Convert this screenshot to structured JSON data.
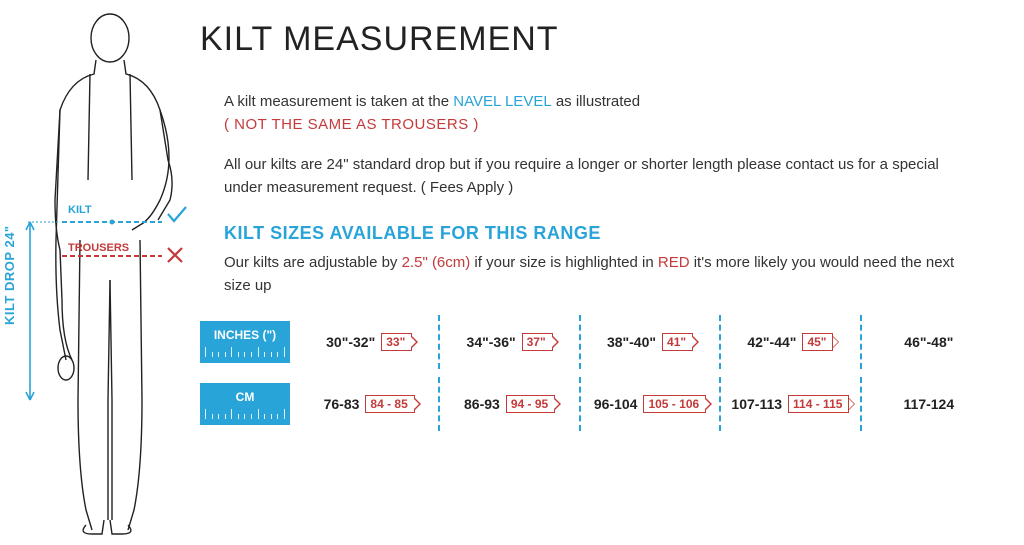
{
  "title": "KILT MEASUREMENT",
  "intro": {
    "line1_pre": "A kilt measurement is taken at the ",
    "line1_highlight": "NAVEL LEVEL",
    "line1_post": " as illustrated",
    "line2": "( NOT THE SAME AS TROUSERS )",
    "para2": "All our kilts are 24\" standard drop but if you require a longer or shorter length please contact us for a special under measurement request. ( Fees Apply )"
  },
  "sizes_heading": "KILT SIZES AVAILABLE FOR THIS RANGE",
  "sizes_sub": {
    "pre": "Our kilts are adjustable by ",
    "adj": "2.5\" (6cm)",
    "mid": " if your size is highlighted in ",
    "red_word": "RED",
    "post": " it's more likely you would need the next size up"
  },
  "units": {
    "inches": "INCHES (\")",
    "cm": "CM"
  },
  "inch_rows": [
    {
      "base": "30\"-32\"",
      "over": "33\""
    },
    {
      "base": "34\"-36\"",
      "over": "37\""
    },
    {
      "base": "38\"-40\"",
      "over": "41\""
    },
    {
      "base": "42\"-44\"",
      "over": "45\""
    },
    {
      "base": "46\"-48\"",
      "over": null
    }
  ],
  "cm_rows": [
    {
      "base": "76-83",
      "over": "84 - 85"
    },
    {
      "base": "86-93",
      "over": "94 - 95"
    },
    {
      "base": "96-104",
      "over": "105 - 106"
    },
    {
      "base": "107-113",
      "over": "114 - 115"
    },
    {
      "base": "117-124",
      "over": null
    }
  ],
  "diagram": {
    "drop_label": "KILT DROP 24\"",
    "kilt_label": "KILT",
    "trousers_label": "TROUSERS"
  },
  "colors": {
    "teal": "#28a4d8",
    "red": "#c43a3a",
    "text": "#222222",
    "bg": "#ffffff"
  }
}
